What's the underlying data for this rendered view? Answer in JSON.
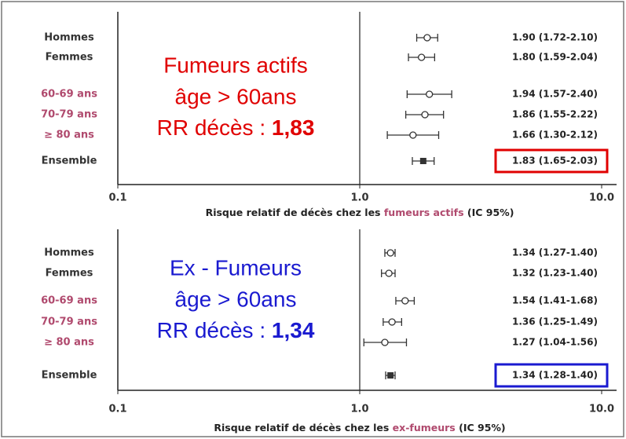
{
  "chart_data": [
    {
      "type": "forest",
      "categories": [
        "Hommes",
        "Femmes",
        "60-69 ans",
        "70-79 ans",
        "≥ 80 ans",
        "Ensemble"
      ],
      "values": [
        1.9,
        1.8,
        1.94,
        1.86,
        1.66,
        1.83
      ],
      "lower": [
        1.72,
        1.59,
        1.57,
        1.55,
        1.3,
        1.65
      ],
      "upper": [
        2.1,
        2.04,
        2.4,
        2.22,
        2.12,
        2.03
      ],
      "value_labels": [
        "1.90 (1.72-2.10)",
        "1.80 (1.59-2.04)",
        "1.94 (1.57-2.40)",
        "1.86 (1.55-2.22)",
        "1.66 (1.30-2.12)",
        "1.83 (1.65-2.03)"
      ],
      "xlim": [
        0.1,
        10
      ],
      "log_x": true,
      "xticks": [
        0.1,
        {
          "value": 1,
          "label": "1.0"
        },
        {
          "value": 10,
          "label": "10.0"
        }
      ],
      "xlabel": [
        "Risque relatif de décès chez les ",
        "fumeurs actifs",
        " (IC 95%)"
      ],
      "annotation": [
        "Fumeurs actifs",
        "âge > 60ans"
      ],
      "rr_label": "RR décès : ",
      "rr_value": "1,83",
      "color": "#e00000"
    },
    {
      "type": "forest",
      "categories": [
        "Hommes",
        "Femmes",
        "60-69 ans",
        "70-79 ans",
        "≥ 80 ans",
        "Ensemble"
      ],
      "values": [
        1.34,
        1.32,
        1.54,
        1.36,
        1.27,
        1.34
      ],
      "lower": [
        1.27,
        1.23,
        1.41,
        1.25,
        1.04,
        1.28
      ],
      "upper": [
        1.4,
        1.4,
        1.68,
        1.49,
        1.56,
        1.4
      ],
      "value_labels": [
        "1.34 (1.27-1.40)",
        "1.32 (1.23-1.40)",
        "1.54 (1.41-1.68)",
        "1.36 (1.25-1.49)",
        "1.27 (1.04-1.56)",
        "1.34 (1.28-1.40)"
      ],
      "xlim": [
        0.1,
        10
      ],
      "log_x": true,
      "xticks": [
        0.1,
        {
          "value": 1,
          "label": "1.0"
        },
        {
          "value": 10,
          "label": "10.0"
        }
      ],
      "xlabel": [
        "Risque relatif de décès chez les ",
        "ex-fumeurs",
        " (IC 95%)"
      ],
      "annotation": [
        "Ex - Fumeurs",
        "âge > 60ans"
      ],
      "rr_label": "RR décès : ",
      "rr_value": "1,34",
      "color": "#1a1ad0"
    }
  ]
}
